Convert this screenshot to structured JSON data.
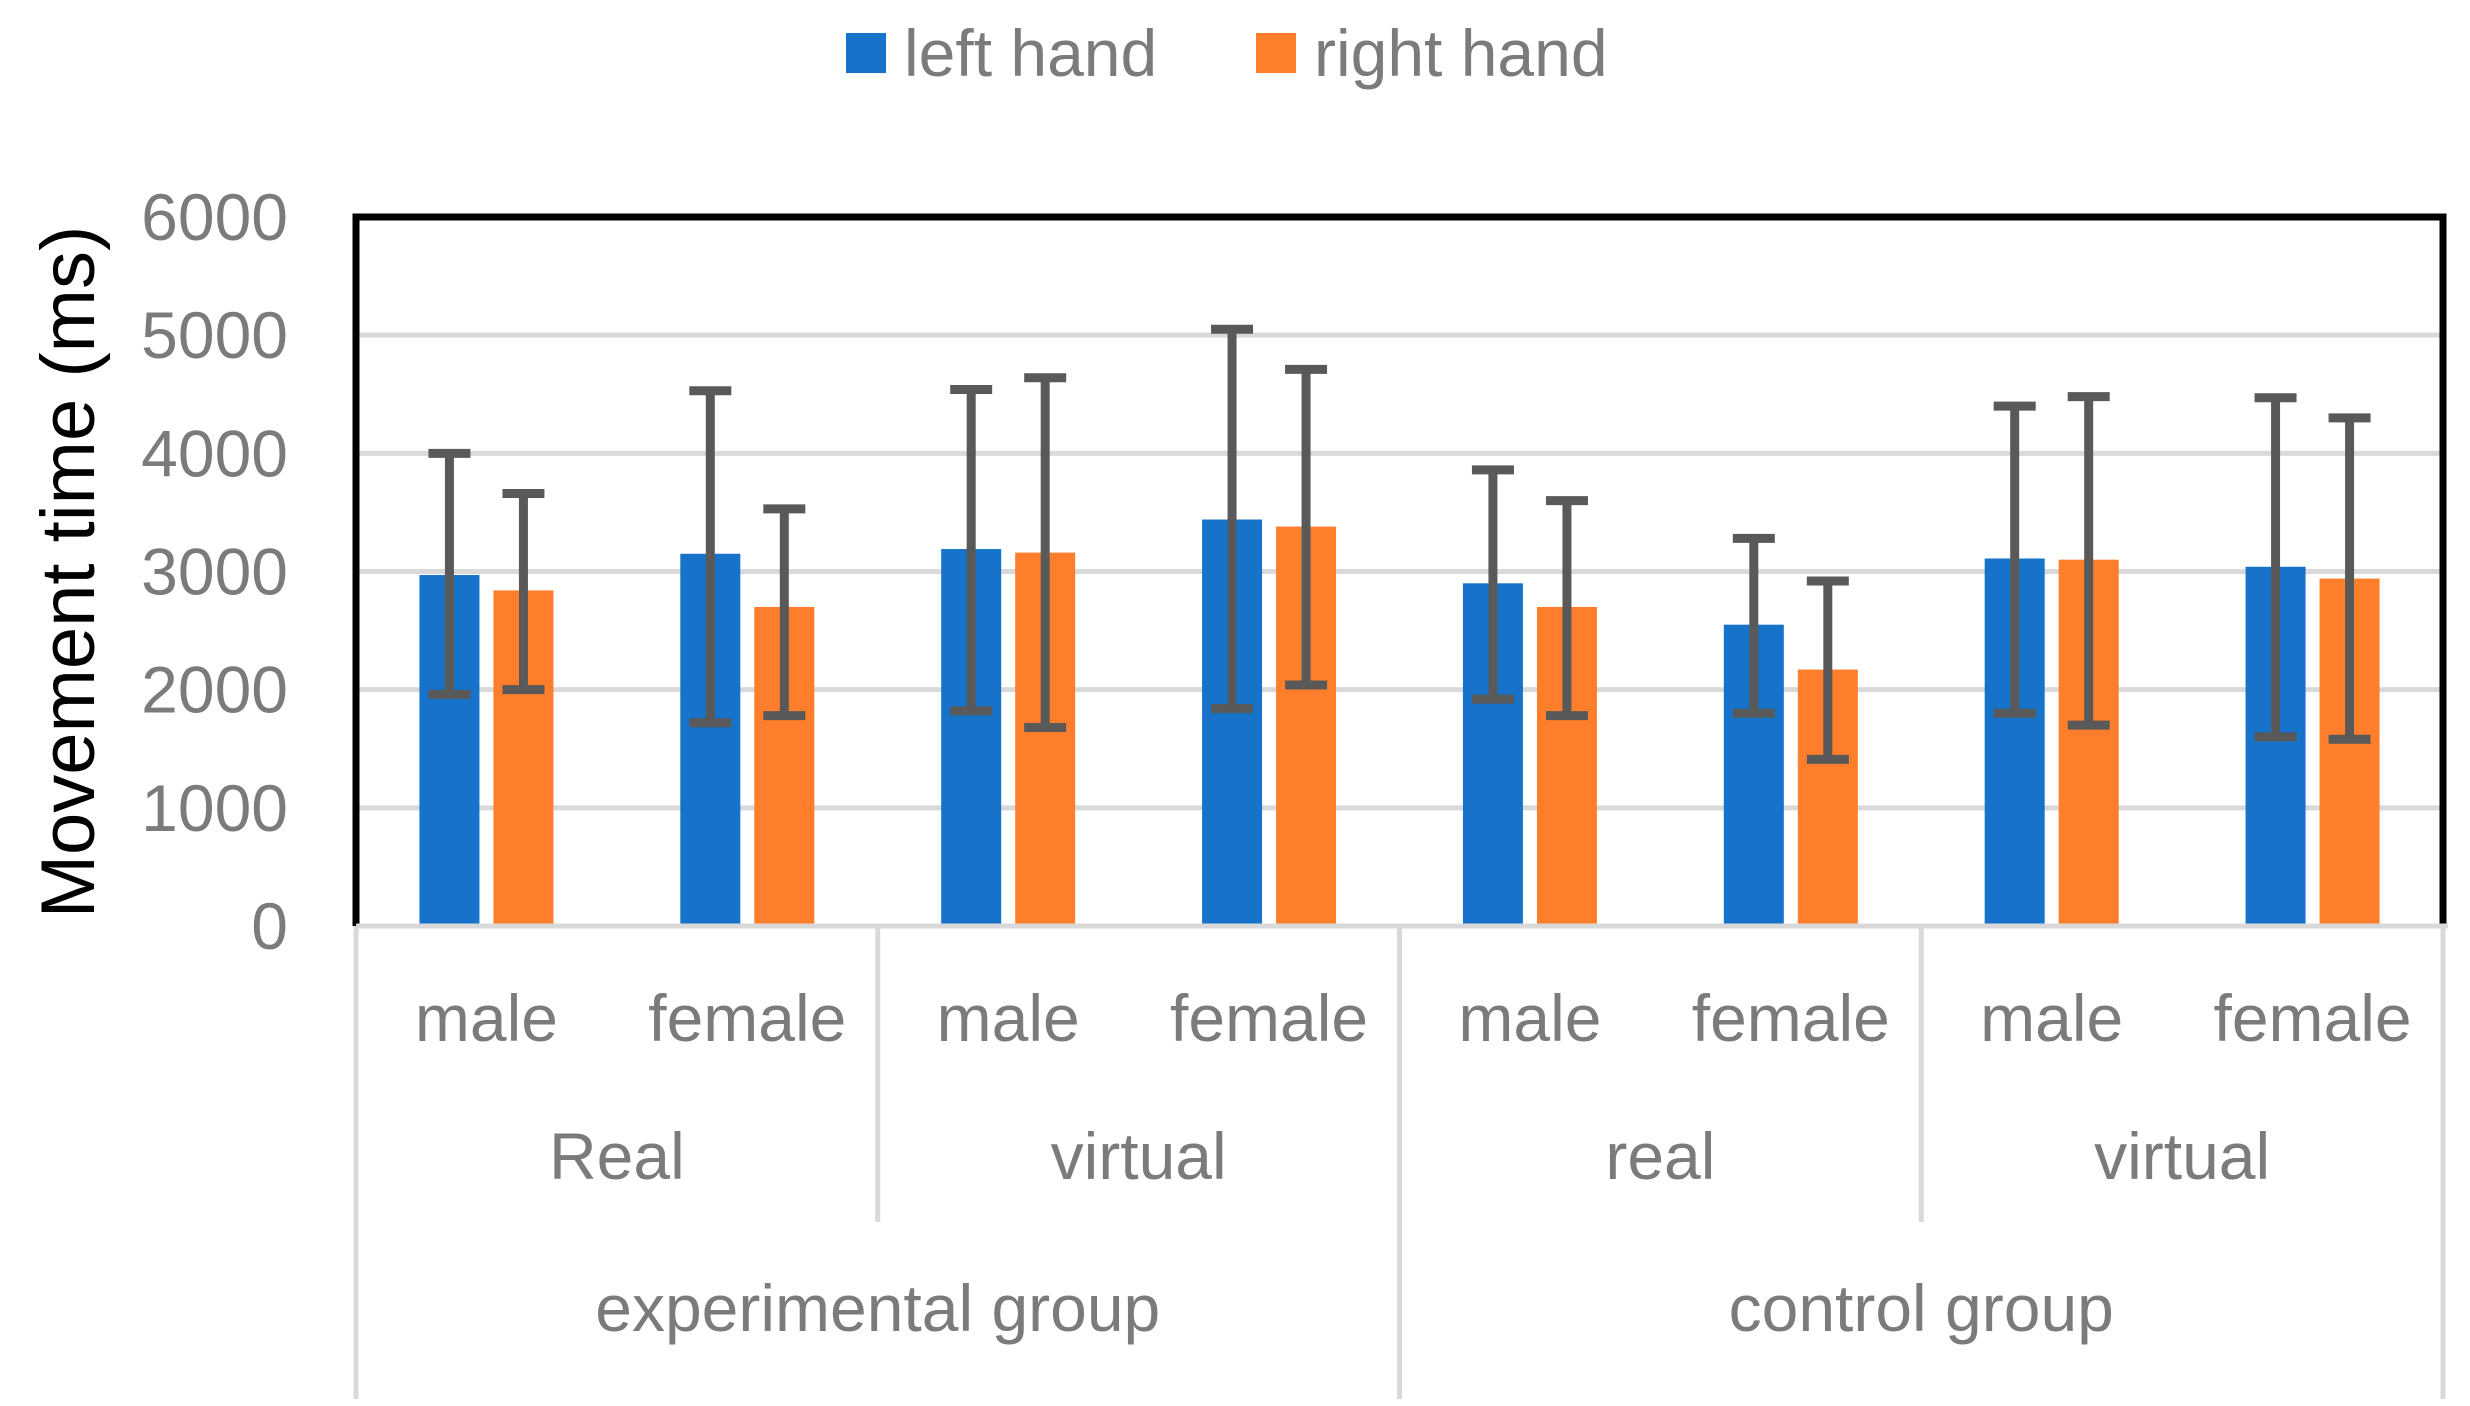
{
  "page": {
    "background": "#ffffff"
  },
  "legend": {
    "items": [
      {
        "label": "left hand",
        "color": "#1772C9"
      },
      {
        "label": "right hand",
        "color": "#FF7E2B"
      }
    ]
  },
  "chart_data": {
    "type": "bar",
    "title": "",
    "ylabel": "Movement time (ms)",
    "xlabel": "",
    "ylim": [
      0,
      6000
    ],
    "yticks": [
      0,
      1000,
      2000,
      3000,
      4000,
      5000,
      6000
    ],
    "grid": true,
    "legend_position": "top-center",
    "error_bars": true,
    "colors": {
      "error_bar": "#595959",
      "gridline": "#D9D9D9",
      "axis_text": "#7B7B7B",
      "axis_title": "#000000",
      "plot_border": "#000000"
    },
    "axis_rows": {
      "sex": [
        "male",
        "female",
        "male",
        "female",
        "male",
        "female",
        "male",
        "female"
      ],
      "condition": [
        {
          "label": "Real",
          "span": 2
        },
        {
          "label": "virtual",
          "span": 2
        },
        {
          "label": "real",
          "span": 2
        },
        {
          "label": "virtual",
          "span": 2
        }
      ],
      "group": [
        {
          "label": "experimental group",
          "span": 4
        },
        {
          "label": "control group",
          "span": 4
        }
      ]
    },
    "series": [
      {
        "name": "left hand",
        "color": "#1772C9",
        "values": [
          2970,
          3150,
          3190,
          3440,
          2900,
          2550,
          3110,
          3040
        ],
        "whisker_min": [
          1960,
          1720,
          1820,
          1840,
          1920,
          1800,
          1800,
          1600
        ],
        "whisker_max": [
          4000,
          4530,
          4540,
          5050,
          3860,
          3280,
          4400,
          4470
        ]
      },
      {
        "name": "right hand",
        "color": "#FF7E2B",
        "values": [
          2840,
          2700,
          3160,
          3380,
          2700,
          2170,
          3100,
          2940
        ],
        "whisker_min": [
          2000,
          1780,
          1680,
          2040,
          1780,
          1410,
          1700,
          1580
        ],
        "whisker_max": [
          3660,
          3530,
          4640,
          4710,
          3600,
          2920,
          4480,
          4300
        ]
      }
    ]
  }
}
